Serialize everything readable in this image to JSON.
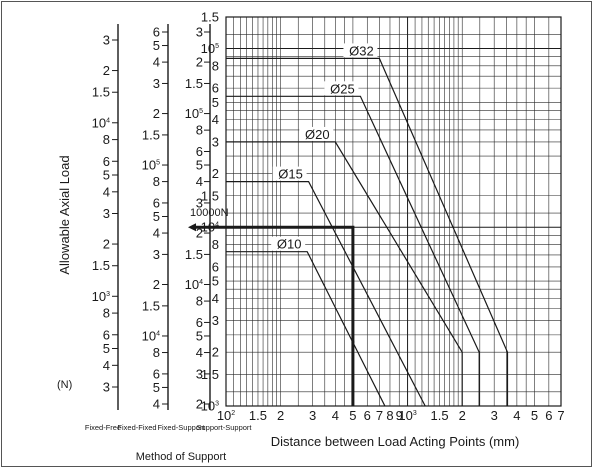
{
  "chart_data": {
    "type": "line",
    "xlabel": "Distance between Load Acting Points (mm)",
    "ylabel": "Allowable Axial Load",
    "y_unit": "(N)",
    "x_scale": "log",
    "y_scale": "log",
    "xlim": [
      100,
      7000
    ],
    "ylim": [
      1000,
      150000
    ],
    "x_ticks": [
      {
        "value": 100,
        "label": "10",
        "exp": "2"
      },
      {
        "value": 150,
        "label": "1.5",
        "exp": ""
      },
      {
        "value": 200,
        "label": "2",
        "exp": ""
      },
      {
        "value": 300,
        "label": "3",
        "exp": ""
      },
      {
        "value": 400,
        "label": "4",
        "exp": ""
      },
      {
        "value": 500,
        "label": "5",
        "exp": ""
      },
      {
        "value": 600,
        "label": "6",
        "exp": ""
      },
      {
        "value": 700,
        "label": "7",
        "exp": ""
      },
      {
        "value": 800,
        "label": "8",
        "exp": ""
      },
      {
        "value": 900,
        "label": "9",
        "exp": ""
      },
      {
        "value": 1000,
        "label": "10",
        "exp": "3"
      },
      {
        "value": 1500,
        "label": "1.5",
        "exp": ""
      },
      {
        "value": 2000,
        "label": "2",
        "exp": ""
      },
      {
        "value": 3000,
        "label": "3",
        "exp": ""
      },
      {
        "value": 4000,
        "label": "4",
        "exp": ""
      },
      {
        "value": 5000,
        "label": "5",
        "exp": ""
      },
      {
        "value": 6000,
        "label": "6",
        "exp": ""
      },
      {
        "value": 7000,
        "label": "7",
        "exp": ""
      }
    ],
    "support_scales": [
      {
        "name": "Fixed-Free",
        "ticks": [
          {
            "value": 1000000,
            "label": "3",
            "exp": ""
          },
          {
            "value": 666667,
            "label": "2",
            "exp": ""
          },
          {
            "value": 500000,
            "label": "1.5",
            "exp": ""
          },
          {
            "value": 333333,
            "label": "10",
            "exp": "4"
          },
          {
            "value": 266667,
            "label": "8",
            "exp": ""
          },
          {
            "value": 200000,
            "label": "6",
            "exp": ""
          },
          {
            "value": 166667,
            "label": "5",
            "exp": ""
          },
          {
            "value": 133333,
            "label": "4",
            "exp": ""
          },
          {
            "value": 100000,
            "label": "3",
            "exp": ""
          },
          {
            "value": 66667,
            "label": "2",
            "exp": ""
          },
          {
            "value": 50000,
            "label": "1.5",
            "exp": ""
          },
          {
            "value": 33333,
            "label": "10",
            "exp": "3"
          },
          {
            "value": 26667,
            "label": "8",
            "exp": ""
          },
          {
            "value": 20000,
            "label": "6",
            "exp": ""
          },
          {
            "value": 16667,
            "label": "5",
            "exp": ""
          },
          {
            "value": 13333,
            "label": "4",
            "exp": ""
          },
          {
            "value": 10000,
            "label": "3",
            "exp": ""
          }
        ]
      },
      {
        "name": "Fixed-Fixed",
        "ticks": [
          {
            "value": 150000,
            "label": "6",
            "exp": ""
          },
          {
            "value": 125000,
            "label": "5",
            "exp": ""
          },
          {
            "value": 100000,
            "label": "4",
            "exp": ""
          },
          {
            "value": 75000,
            "label": "3",
            "exp": ""
          },
          {
            "value": 50000,
            "label": "2",
            "exp": ""
          },
          {
            "value": 37500,
            "label": "1.5",
            "exp": ""
          },
          {
            "value": 25000,
            "label": "10",
            "exp": "5"
          },
          {
            "value": 20000,
            "label": "8",
            "exp": ""
          },
          {
            "value": 15000,
            "label": "6",
            "exp": ""
          },
          {
            "value": 12500,
            "label": "5",
            "exp": ""
          },
          {
            "value": 10000,
            "label": "4",
            "exp": ""
          },
          {
            "value": 7500,
            "label": "3",
            "exp": ""
          },
          {
            "value": 5000,
            "label": "2",
            "exp": ""
          },
          {
            "value": 3750,
            "label": "1.5",
            "exp": ""
          },
          {
            "value": 2500,
            "label": "10",
            "exp": "4"
          },
          {
            "value": 2000,
            "label": "8",
            "exp": ""
          },
          {
            "value": 1500,
            "label": "6",
            "exp": ""
          },
          {
            "value": 1250,
            "label": "5",
            "exp": ""
          },
          {
            "value": 1000,
            "label": "4",
            "exp": ""
          }
        ]
      },
      {
        "name": "Fixed-Support",
        "ticks": [
          {
            "value": 150000,
            "label": "3",
            "exp": ""
          },
          {
            "value": 100000,
            "label": "2",
            "exp": ""
          },
          {
            "value": 75000,
            "label": "1.5",
            "exp": ""
          },
          {
            "value": 50000,
            "label": "10",
            "exp": "5"
          },
          {
            "value": 40000,
            "label": "8",
            "exp": ""
          },
          {
            "value": 30000,
            "label": "6",
            "exp": ""
          },
          {
            "value": 25000,
            "label": "5",
            "exp": ""
          },
          {
            "value": 20000,
            "label": "4",
            "exp": ""
          },
          {
            "value": 15000,
            "label": "3",
            "exp": ""
          },
          {
            "value": 10000,
            "label": "2",
            "exp": ""
          },
          {
            "value": 7500,
            "label": "1.5",
            "exp": ""
          },
          {
            "value": 5000,
            "label": "10",
            "exp": "4"
          },
          {
            "value": 4000,
            "label": "8",
            "exp": ""
          },
          {
            "value": 3000,
            "label": "6",
            "exp": ""
          },
          {
            "value": 2500,
            "label": "5",
            "exp": ""
          },
          {
            "value": 2000,
            "label": "4",
            "exp": ""
          },
          {
            "value": 1500,
            "label": "3",
            "exp": ""
          },
          {
            "value": 1000,
            "label": "2",
            "exp": ""
          }
        ]
      },
      {
        "name": "Support-Support",
        "ticks": [
          {
            "value": 150000,
            "label": "1.5",
            "exp": ""
          },
          {
            "value": 100000,
            "label": "10",
            "exp": "5"
          },
          {
            "value": 80000,
            "label": "8",
            "exp": ""
          },
          {
            "value": 60000,
            "label": "6",
            "exp": ""
          },
          {
            "value": 50000,
            "label": "5",
            "exp": ""
          },
          {
            "value": 40000,
            "label": "4",
            "exp": ""
          },
          {
            "value": 30000,
            "label": "3",
            "exp": ""
          },
          {
            "value": 20000,
            "label": "2",
            "exp": ""
          },
          {
            "value": 15000,
            "label": "1.5",
            "exp": ""
          },
          {
            "value": 10000,
            "label": "10",
            "exp": "4"
          },
          {
            "value": 8000,
            "label": "8",
            "exp": ""
          },
          {
            "value": 6000,
            "label": "6",
            "exp": ""
          },
          {
            "value": 5000,
            "label": "5",
            "exp": ""
          },
          {
            "value": 4000,
            "label": "4",
            "exp": ""
          },
          {
            "value": 3000,
            "label": "3",
            "exp": ""
          },
          {
            "value": 2000,
            "label": "2",
            "exp": ""
          },
          {
            "value": 1500,
            "label": "1.5",
            "exp": ""
          },
          {
            "value": 1000,
            "label": "10",
            "exp": "3"
          }
        ]
      }
    ],
    "support_title": "Method of Support",
    "series": [
      {
        "name": "Ø10",
        "points": [
          [
            100,
            7300
          ],
          [
            280,
            7300
          ],
          [
            750,
            1000
          ]
        ]
      },
      {
        "name": "Ø15",
        "points": [
          [
            100,
            18000
          ],
          [
            285,
            18000
          ],
          [
            1250,
            1000
          ]
        ]
      },
      {
        "name": "Ø20",
        "points": [
          [
            100,
            30000
          ],
          [
            400,
            30000
          ],
          [
            2000,
            2000
          ],
          [
            2000,
            1000
          ]
        ]
      },
      {
        "name": "Ø25",
        "points": [
          [
            100,
            54000
          ],
          [
            550,
            54000
          ],
          [
            2480,
            2000
          ],
          [
            2480,
            1000
          ]
        ]
      },
      {
        "name": "Ø32",
        "points": [
          [
            100,
            88000
          ],
          [
            700,
            88000
          ],
          [
            3550,
            2000
          ],
          [
            3550,
            1000
          ]
        ]
      }
    ],
    "example": {
      "label": "10000N",
      "load": 10000,
      "distance": 500
    }
  }
}
